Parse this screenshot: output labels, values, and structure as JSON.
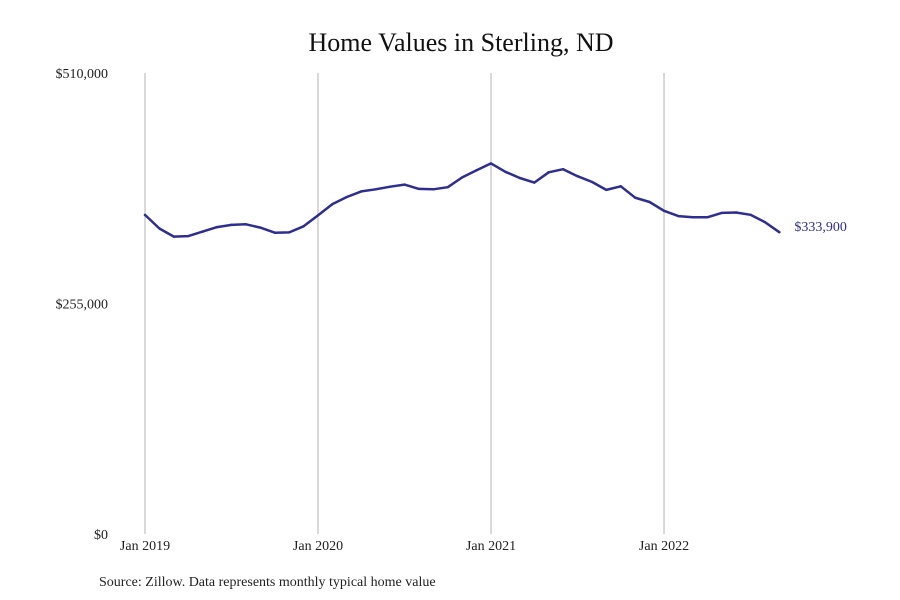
{
  "chart_data": {
    "type": "line",
    "title": "Home Values in Sterling, ND",
    "xlabel": "",
    "ylabel": "",
    "source": "Source: Zillow. Data represents monthly typical home value",
    "ylim": [
      0,
      510000
    ],
    "y_ticks": [
      {
        "value": 0,
        "label": "$0"
      },
      {
        "value": 255000,
        "label": "$255,000"
      },
      {
        "value": 510000,
        "label": "$510,000"
      }
    ],
    "x_ticks": [
      {
        "index": 0,
        "label": "Jan 2019"
      },
      {
        "index": 12,
        "label": "Jan 2020"
      },
      {
        "index": 24,
        "label": "Jan 2021"
      },
      {
        "index": 36,
        "label": "Jan 2022"
      }
    ],
    "grid": "vertical",
    "line_color": "#2e2e8f",
    "end_label": "$333,900",
    "x": [
      "2019-01",
      "2019-02",
      "2019-03",
      "2019-04",
      "2019-05",
      "2019-06",
      "2019-07",
      "2019-08",
      "2019-09",
      "2019-10",
      "2019-11",
      "2019-12",
      "2020-01",
      "2020-02",
      "2020-03",
      "2020-04",
      "2020-05",
      "2020-06",
      "2020-07",
      "2020-08",
      "2020-09",
      "2020-10",
      "2020-11",
      "2020-12",
      "2021-01",
      "2021-02",
      "2021-03",
      "2021-04",
      "2021-05",
      "2021-06",
      "2021-07",
      "2021-08",
      "2021-09",
      "2021-10",
      "2021-11",
      "2021-12",
      "2022-01",
      "2022-02",
      "2022-03",
      "2022-04",
      "2022-05",
      "2022-06",
      "2022-07",
      "2022-08",
      "2022-09"
    ],
    "series": [
      {
        "values": [
          353000,
          338000,
          329000,
          329600,
          334500,
          339500,
          342000,
          342600,
          339000,
          333300,
          333700,
          340400,
          352500,
          365000,
          372800,
          379000,
          381300,
          384200,
          386500,
          381800,
          381300,
          383700,
          394500,
          402400,
          410000,
          400700,
          393800,
          388700,
          400100,
          403600,
          395800,
          389500,
          380700,
          384700,
          372000,
          367300,
          357500,
          351700,
          350400,
          350400,
          355200,
          355700,
          353100,
          345100,
          333900
        ]
      }
    ]
  }
}
